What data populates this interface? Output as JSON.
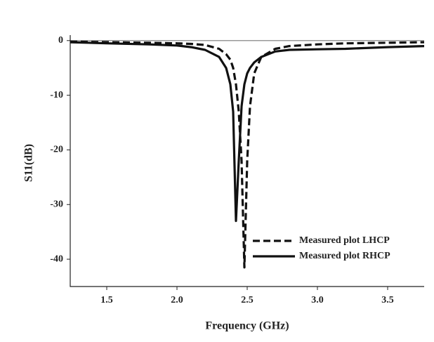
{
  "chart_data": {
    "type": "line",
    "xlabel": "Frequency (GHz)",
    "ylabel": "S11(dB)",
    "x": [
      1.24,
      1.5,
      1.8,
      2.0,
      2.1,
      2.2,
      2.3,
      2.35,
      2.38,
      2.4,
      2.42,
      2.44,
      2.46,
      2.48,
      2.5,
      2.52,
      2.55,
      2.6,
      2.7,
      2.8,
      3.0,
      3.2,
      3.5,
      3.76
    ],
    "series": [
      {
        "name": "Measured plot LHCP",
        "color": "#111111",
        "dash": true,
        "values": [
          -0.2,
          -0.3,
          -0.4,
          -0.5,
          -0.6,
          -0.8,
          -1.5,
          -2.5,
          -3.5,
          -5,
          -8,
          -13,
          -22,
          -41.5,
          -22,
          -12,
          -6,
          -3,
          -1.5,
          -1,
          -0.7,
          -0.5,
          -0.4,
          -0.3
        ]
      },
      {
        "name": "Measured plot RHCP",
        "color": "#111111",
        "dash": false,
        "values": [
          -0.3,
          -0.5,
          -0.7,
          -0.9,
          -1.2,
          -1.7,
          -3,
          -5,
          -8,
          -13,
          -33,
          -22,
          -12,
          -8,
          -6,
          -5,
          -4,
          -3,
          -2,
          -1.7,
          -1.6,
          -1.5,
          -1.2,
          -1.0
        ]
      }
    ],
    "xlim": [
      1.24,
      3.76
    ],
    "ylim": [
      -45,
      1
    ],
    "xticks": [
      1.5,
      {
        "value": 2,
        "label": "2.0"
      },
      2.5,
      {
        "value": 3,
        "label": "3.0"
      },
      3.5
    ],
    "yticks": [
      0,
      -10,
      -20,
      -30,
      -40
    ],
    "legend": "lower right"
  }
}
